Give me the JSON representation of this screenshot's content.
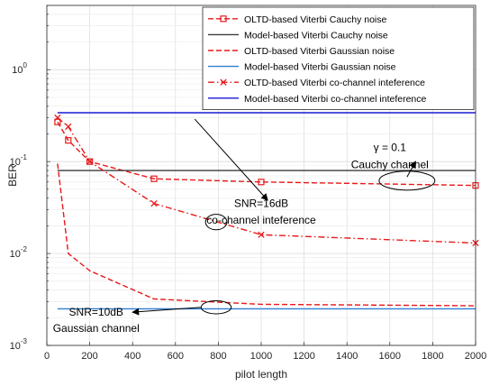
{
  "chart_data": {
    "type": "line",
    "xlabel": "pilot length",
    "ylabel": "BER",
    "xlim": [
      0,
      2000
    ],
    "ylim": [
      0.001,
      5
    ],
    "yscale": "log",
    "grid": true,
    "legend_position": "top-right",
    "x_ticks": [
      "0",
      "200",
      "400",
      "600",
      "800",
      "1000",
      "1200",
      "1400",
      "1600",
      "1800",
      "2000"
    ],
    "y_ticks": [
      {
        "base": "10",
        "exp": "0",
        "value": 1
      },
      {
        "base": "10",
        "exp": "-1",
        "value": 0.1
      },
      {
        "base": "10",
        "exp": "-2",
        "value": 0.01
      },
      {
        "base": "10",
        "exp": "-3",
        "value": 0.001
      }
    ],
    "series": [
      {
        "name": "OLTD-based Viterbi Cauchy noise",
        "color": "#e8191b",
        "dash": "dashed",
        "marker": "square",
        "x": [
          50,
          100,
          200,
          500,
          1000,
          2000
        ],
        "y": [
          0.27,
          0.17,
          0.1,
          0.065,
          0.06,
          0.055
        ]
      },
      {
        "name": "Model-based Viterbi Cauchy noise",
        "color": "#3c3c3c",
        "dash": "solid",
        "marker": "none",
        "x": [
          50,
          2000
        ],
        "y": [
          0.08,
          0.08
        ]
      },
      {
        "name": "OLTD-based Viterbi Gaussian noise",
        "color": "#e8191b",
        "dash": "dashed",
        "marker": "none",
        "x": [
          50,
          100,
          200,
          500,
          1000,
          2000
        ],
        "y": [
          0.095,
          0.01,
          0.0065,
          0.0032,
          0.0028,
          0.0027
        ]
      },
      {
        "name": "Model-based Viterbi Gaussian noise",
        "color": "#2f7fd3",
        "dash": "solid",
        "marker": "none",
        "x": [
          50,
          2000
        ],
        "y": [
          0.0025,
          0.0025
        ]
      },
      {
        "name": "OLTD-based Viterbi co-channel inteference",
        "color": "#e8191b",
        "dash": "dashdot",
        "marker": "x",
        "x": [
          50,
          100,
          200,
          500,
          1000,
          2000
        ],
        "y": [
          0.3,
          0.24,
          0.1,
          0.035,
          0.016,
          0.013
        ]
      },
      {
        "name": "Model-based Viterbi co-channel inteference",
        "color": "#1a1ad6",
        "dash": "solid",
        "marker": "none",
        "x": [
          50,
          2000
        ],
        "y": [
          0.34,
          0.34
        ]
      }
    ],
    "annotations": [
      {
        "lines": [
          "γ = 0.1",
          "Cauchy channel"
        ],
        "text_x": 1600,
        "text_y": [
          0.13,
          0.085
        ],
        "ellipse": {
          "cx": 1680,
          "cy": 0.062,
          "rx": 130,
          "ry": 0.16
        },
        "arrow_from": [
          1680,
          0.068
        ],
        "arrow_to": [
          1720,
          0.1
        ]
      },
      {
        "lines": [
          "SNR=16dB",
          "co-channel inteference"
        ],
        "text_x": 1000,
        "text_y": [
          0.032,
          0.021
        ],
        "ellipse": {
          "cx": 790,
          "cy": 0.022,
          "rx": 50,
          "ry": 0.13
        },
        "arrow_from": [
          690,
          0.29
        ],
        "arrow_to": [
          1030,
          0.038
        ]
      },
      {
        "lines": [
          "SNR=10dB",
          "Gaussian channel"
        ],
        "text_x": 230,
        "text_y": [
          0.0021,
          0.0014
        ],
        "ellipse": {
          "cx": 790,
          "cy": 0.0026,
          "rx": 70,
          "ry": 0.11
        },
        "arrow_from": [
          720,
          0.0026
        ],
        "arrow_to": [
          400,
          0.0023
        ]
      }
    ]
  }
}
